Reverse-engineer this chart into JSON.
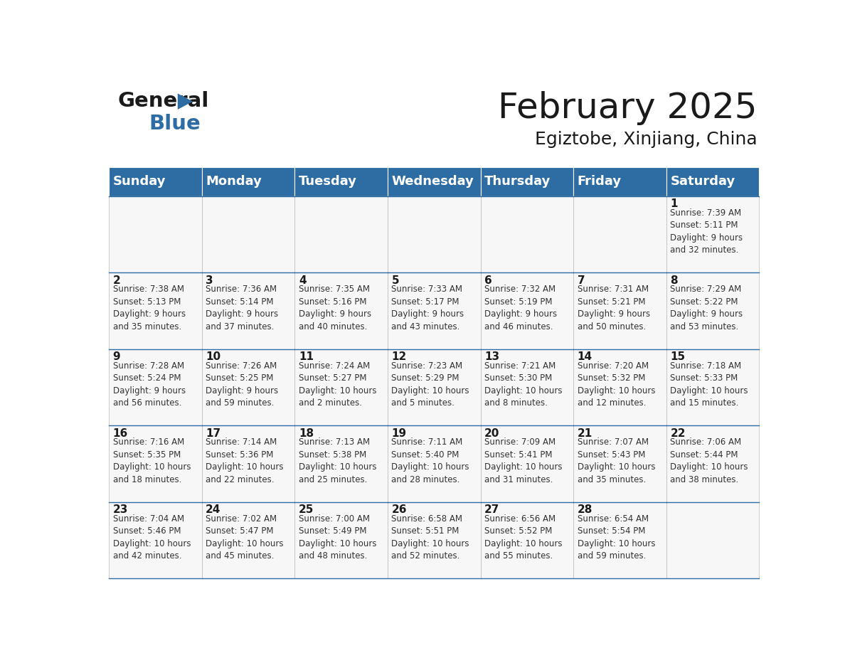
{
  "title": "February 2025",
  "subtitle": "Egiztobe, Xinjiang, China",
  "header_color": "#2E6DA4",
  "header_text_color": "#FFFFFF",
  "day_names": [
    "Sunday",
    "Monday",
    "Tuesday",
    "Wednesday",
    "Thursday",
    "Friday",
    "Saturday"
  ],
  "title_fontsize": 36,
  "subtitle_fontsize": 18,
  "header_fontsize": 13,
  "day_num_fontsize": 11,
  "cell_fontsize": 8.5,
  "calendar": [
    [
      null,
      null,
      null,
      null,
      null,
      null,
      {
        "day": 1,
        "sunrise": "7:39 AM",
        "sunset": "5:11 PM",
        "daylight": "9 hours\nand 32 minutes."
      }
    ],
    [
      {
        "day": 2,
        "sunrise": "7:38 AM",
        "sunset": "5:13 PM",
        "daylight": "9 hours\nand 35 minutes."
      },
      {
        "day": 3,
        "sunrise": "7:36 AM",
        "sunset": "5:14 PM",
        "daylight": "9 hours\nand 37 minutes."
      },
      {
        "day": 4,
        "sunrise": "7:35 AM",
        "sunset": "5:16 PM",
        "daylight": "9 hours\nand 40 minutes."
      },
      {
        "day": 5,
        "sunrise": "7:33 AM",
        "sunset": "5:17 PM",
        "daylight": "9 hours\nand 43 minutes."
      },
      {
        "day": 6,
        "sunrise": "7:32 AM",
        "sunset": "5:19 PM",
        "daylight": "9 hours\nand 46 minutes."
      },
      {
        "day": 7,
        "sunrise": "7:31 AM",
        "sunset": "5:21 PM",
        "daylight": "9 hours\nand 50 minutes."
      },
      {
        "day": 8,
        "sunrise": "7:29 AM",
        "sunset": "5:22 PM",
        "daylight": "9 hours\nand 53 minutes."
      }
    ],
    [
      {
        "day": 9,
        "sunrise": "7:28 AM",
        "sunset": "5:24 PM",
        "daylight": "9 hours\nand 56 minutes."
      },
      {
        "day": 10,
        "sunrise": "7:26 AM",
        "sunset": "5:25 PM",
        "daylight": "9 hours\nand 59 minutes."
      },
      {
        "day": 11,
        "sunrise": "7:24 AM",
        "sunset": "5:27 PM",
        "daylight": "10 hours\nand 2 minutes."
      },
      {
        "day": 12,
        "sunrise": "7:23 AM",
        "sunset": "5:29 PM",
        "daylight": "10 hours\nand 5 minutes."
      },
      {
        "day": 13,
        "sunrise": "7:21 AM",
        "sunset": "5:30 PM",
        "daylight": "10 hours\nand 8 minutes."
      },
      {
        "day": 14,
        "sunrise": "7:20 AM",
        "sunset": "5:32 PM",
        "daylight": "10 hours\nand 12 minutes."
      },
      {
        "day": 15,
        "sunrise": "7:18 AM",
        "sunset": "5:33 PM",
        "daylight": "10 hours\nand 15 minutes."
      }
    ],
    [
      {
        "day": 16,
        "sunrise": "7:16 AM",
        "sunset": "5:35 PM",
        "daylight": "10 hours\nand 18 minutes."
      },
      {
        "day": 17,
        "sunrise": "7:14 AM",
        "sunset": "5:36 PM",
        "daylight": "10 hours\nand 22 minutes."
      },
      {
        "day": 18,
        "sunrise": "7:13 AM",
        "sunset": "5:38 PM",
        "daylight": "10 hours\nand 25 minutes."
      },
      {
        "day": 19,
        "sunrise": "7:11 AM",
        "sunset": "5:40 PM",
        "daylight": "10 hours\nand 28 minutes."
      },
      {
        "day": 20,
        "sunrise": "7:09 AM",
        "sunset": "5:41 PM",
        "daylight": "10 hours\nand 31 minutes."
      },
      {
        "day": 21,
        "sunrise": "7:07 AM",
        "sunset": "5:43 PM",
        "daylight": "10 hours\nand 35 minutes."
      },
      {
        "day": 22,
        "sunrise": "7:06 AM",
        "sunset": "5:44 PM",
        "daylight": "10 hours\nand 38 minutes."
      }
    ],
    [
      {
        "day": 23,
        "sunrise": "7:04 AM",
        "sunset": "5:46 PM",
        "daylight": "10 hours\nand 42 minutes."
      },
      {
        "day": 24,
        "sunrise": "7:02 AM",
        "sunset": "5:47 PM",
        "daylight": "10 hours\nand 45 minutes."
      },
      {
        "day": 25,
        "sunrise": "7:00 AM",
        "sunset": "5:49 PM",
        "daylight": "10 hours\nand 48 minutes."
      },
      {
        "day": 26,
        "sunrise": "6:58 AM",
        "sunset": "5:51 PM",
        "daylight": "10 hours\nand 52 minutes."
      },
      {
        "day": 27,
        "sunrise": "6:56 AM",
        "sunset": "5:52 PM",
        "daylight": "10 hours\nand 55 minutes."
      },
      {
        "day": 28,
        "sunrise": "6:54 AM",
        "sunset": "5:54 PM",
        "daylight": "10 hours\nand 59 minutes."
      },
      null
    ]
  ]
}
